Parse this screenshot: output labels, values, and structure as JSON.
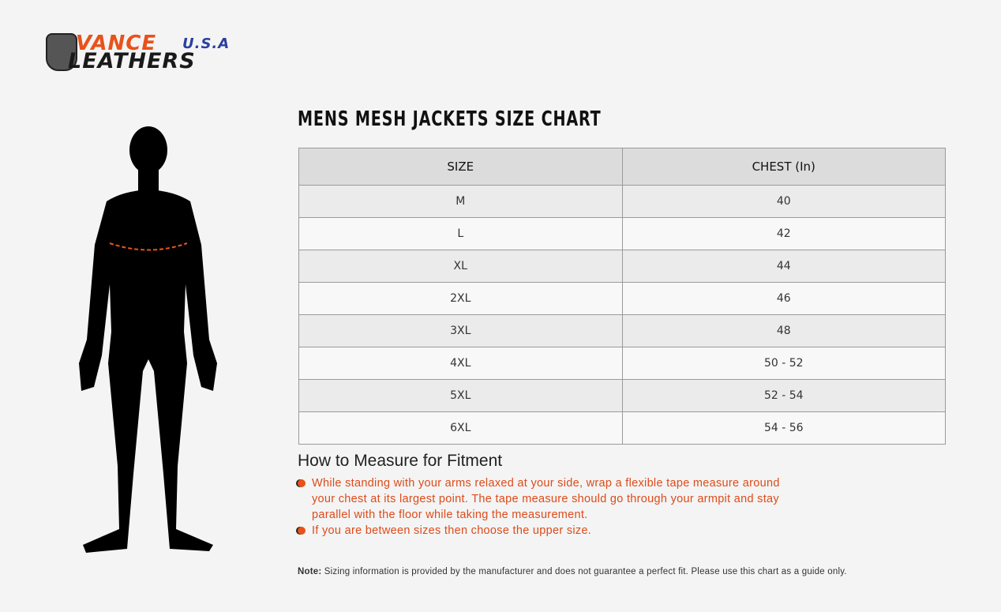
{
  "logo": {
    "line1": "VANCE",
    "usa": "U.S.A",
    "line2": "LEATHERS"
  },
  "title": "MENS MESH JACKETS SIZE CHART",
  "table": {
    "headers": [
      "SIZE",
      "CHEST (In)"
    ],
    "rows": [
      [
        "M",
        "40"
      ],
      [
        "L",
        "42"
      ],
      [
        "XL",
        "44"
      ],
      [
        "2XL",
        "46"
      ],
      [
        "3XL",
        "48"
      ],
      [
        "4XL",
        "50 - 52"
      ],
      [
        "5XL",
        "52 - 54"
      ],
      [
        "6XL",
        "54 - 56"
      ]
    ]
  },
  "howto": {
    "heading": "How to Measure for Fitment",
    "bullets": [
      "While standing with your arms relaxed at your side, wrap a flexible tape measure around your chest at its largest point. The tape measure should go through your armpit and stay parallel with the floor while taking the measurement.",
      "If you are between sizes then choose the upper size."
    ]
  },
  "note": {
    "label": "Note:",
    "text": "Sizing information is provided by the manufacturer and does not guarantee a perfect fit. Please use this chart as a guide only."
  },
  "colors": {
    "accent": "#e8521a",
    "header_bg": "#dcdcdc"
  }
}
